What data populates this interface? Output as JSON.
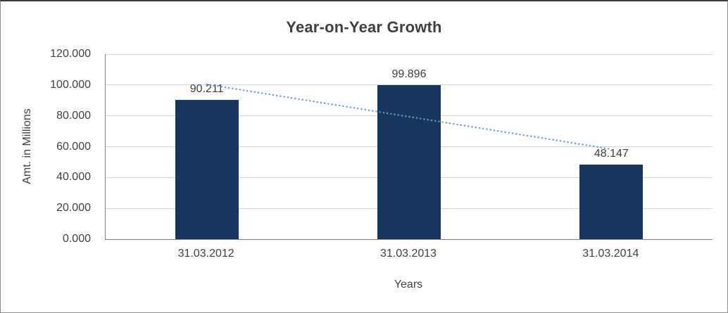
{
  "chart_data": {
    "type": "bar",
    "title": "Year-on-Year Growth",
    "xlabel": "Years",
    "ylabel": "Amt. in Millions",
    "categories": [
      "31.03.2012",
      "31.03.2013",
      "31.03.2014"
    ],
    "values": [
      90.211,
      99.896,
      48.147
    ],
    "value_labels": [
      "90.211",
      "99.896",
      "48.147"
    ],
    "ylim": [
      0,
      120
    ],
    "ytick_step": 20,
    "ytick_labels": [
      "0.000",
      "20.000",
      "40.000",
      "60.000",
      "80.000",
      "100.000",
      "120.000"
    ],
    "grid": "horizontal",
    "legend": "none",
    "bar_color": "#17375D",
    "gridline_color": "#D6D6D6",
    "axis_color": "#7F7F7F",
    "text_color": "#404040",
    "trendline": {
      "type": "linear",
      "style": "dotted",
      "color": "#6C9BD1",
      "start": 100.45,
      "end": 58.39
    }
  }
}
